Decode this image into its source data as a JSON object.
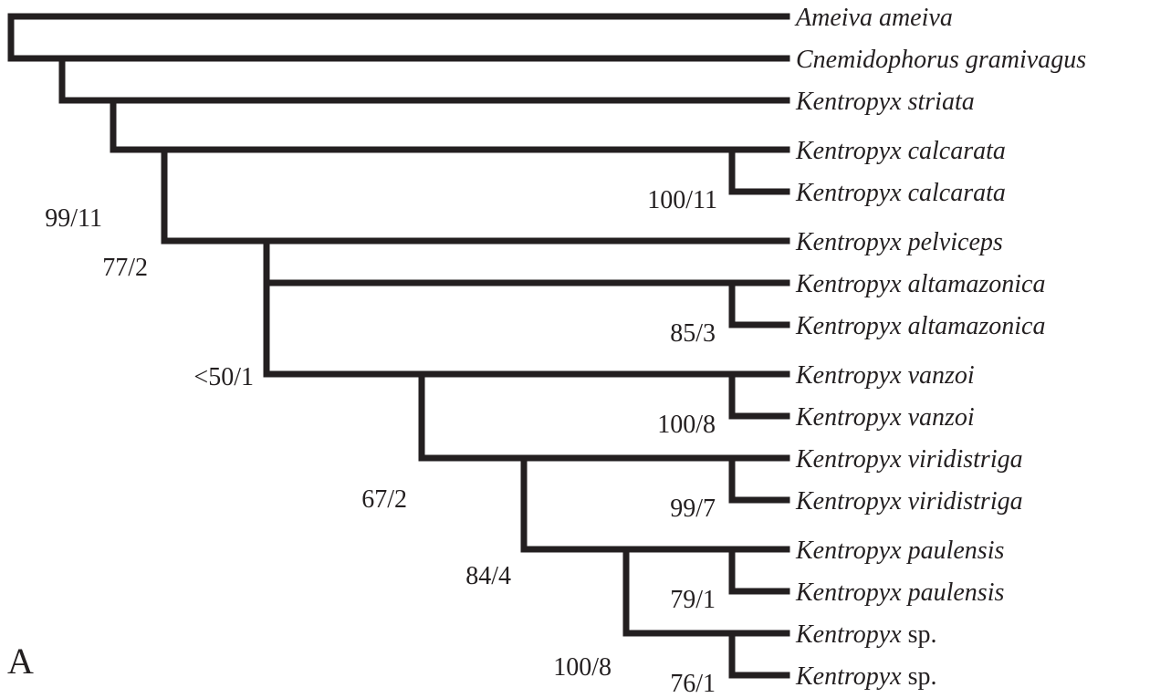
{
  "panel_label": "A",
  "taxa": [
    {
      "genus": "Ameiva ameiva",
      "suffix": ""
    },
    {
      "genus": "Cnemidophorus gramivagus",
      "suffix": ""
    },
    {
      "genus": "Kentropyx striata",
      "suffix": ""
    },
    {
      "genus": "Kentropyx calcarata",
      "suffix": ""
    },
    {
      "genus": "Kentropyx calcarata",
      "suffix": ""
    },
    {
      "genus": "Kentropyx pelviceps",
      "suffix": ""
    },
    {
      "genus": "Kentropyx altamazonica",
      "suffix": ""
    },
    {
      "genus": "Kentropyx altamazonica",
      "suffix": ""
    },
    {
      "genus": "Kentropyx vanzoi",
      "suffix": ""
    },
    {
      "genus": "Kentropyx vanzoi",
      "suffix": ""
    },
    {
      "genus": "Kentropyx viridistriga",
      "suffix": ""
    },
    {
      "genus": "Kentropyx viridistriga",
      "suffix": ""
    },
    {
      "genus": "Kentropyx paulensis",
      "suffix": ""
    },
    {
      "genus": "Kentropyx paulensis",
      "suffix": ""
    },
    {
      "genus": "Kentropyx",
      "suffix": " sp."
    },
    {
      "genus": "Kentropyx",
      "suffix": " sp."
    }
  ],
  "support": {
    "n_root_cnem": "99/11",
    "n_striata": "77/2",
    "n_ingroup": "<50/1",
    "n_calcarata": "100/11",
    "n_altamazonica": "85/3",
    "n_vanzoi_clade": "67/2",
    "n_vanzoi": "100/8",
    "n_viridistriga_clade": "84/4",
    "n_viridistriga": "99/7",
    "n_paulensis_clade": "100/8",
    "n_paulensis": "79/1",
    "n_sp": "76/1"
  }
}
